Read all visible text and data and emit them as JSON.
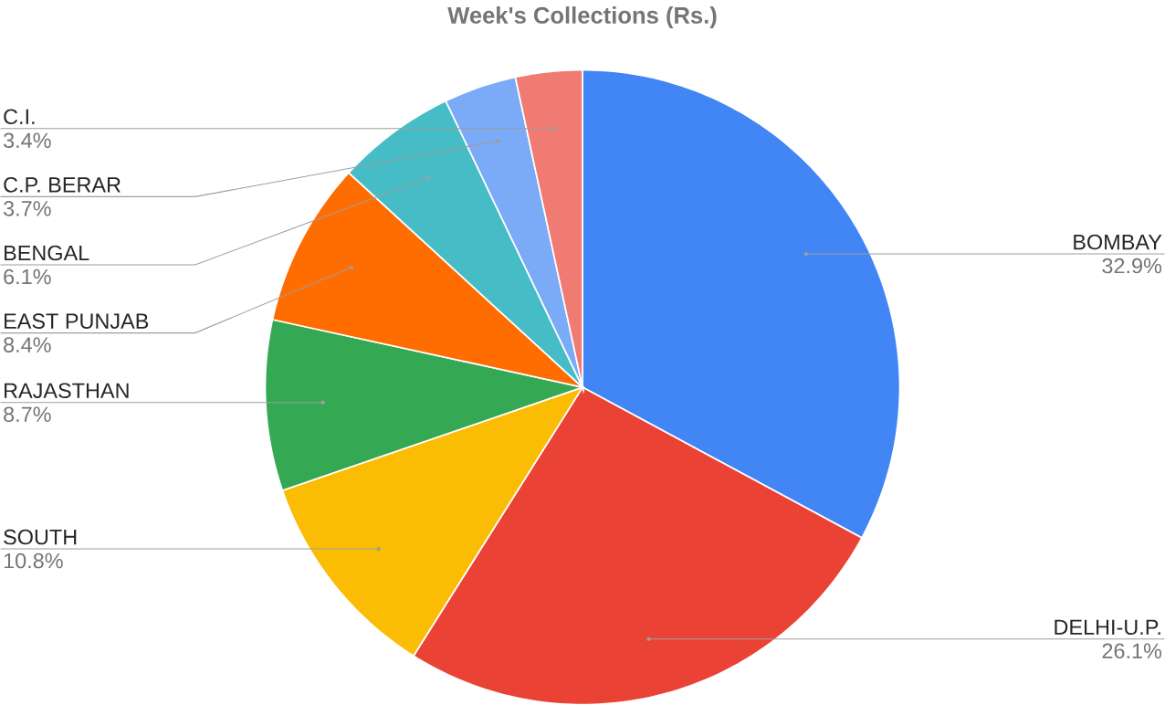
{
  "chart_data": {
    "type": "pie",
    "title": "Week's Collections (Rs.)",
    "categories": [
      "BOMBAY",
      "DELHI-U.P.",
      "SOUTH",
      "RAJASTHAN",
      "EAST PUNJAB",
      "BENGAL",
      "C.P. BERAR",
      "C.I."
    ],
    "values": [
      32.9,
      26.1,
      10.8,
      8.7,
      8.4,
      6.1,
      3.7,
      3.4
    ],
    "value_labels": [
      "32.9%",
      "26.1%",
      "10.8%",
      "8.7%",
      "8.4%",
      "6.1%",
      "3.7%",
      "3.4%"
    ],
    "colors": [
      "#4285f4",
      "#ea4335",
      "#fbbc04",
      "#34a853",
      "#ff6d01",
      "#46bdc6",
      "#7baaf7",
      "#f07b72"
    ]
  }
}
